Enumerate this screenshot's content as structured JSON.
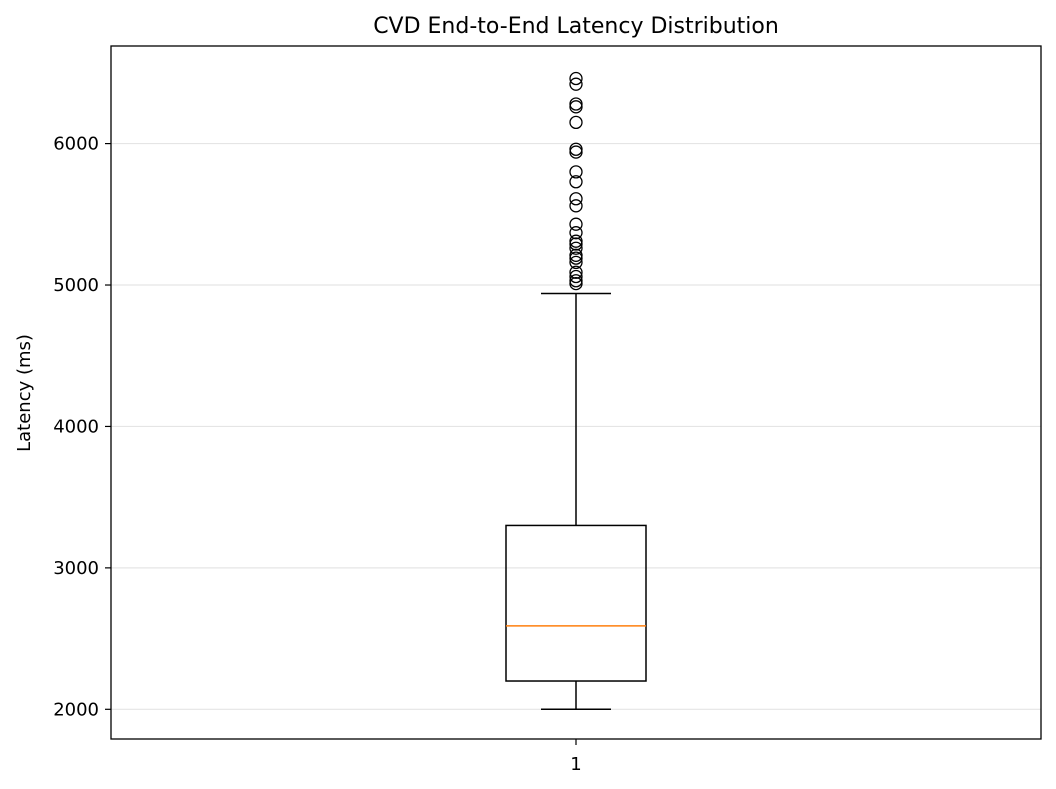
{
  "chart_data": {
    "type": "box",
    "title": "CVD End-to-End Latency Distribution",
    "xlabel": "",
    "ylabel": "Latency (ms)",
    "ylim": [
      1790,
      6690
    ],
    "yticks": [
      2000,
      3000,
      4000,
      5000,
      6000
    ],
    "grid": {
      "y": true,
      "x": false
    },
    "categories": [
      "1"
    ],
    "boxes": [
      {
        "category": "1",
        "whisker_low": 2000,
        "q1": 2200,
        "median": 2590,
        "q3": 3300,
        "whisker_high": 4940,
        "outliers": [
          5010,
          5030,
          5060,
          5090,
          5160,
          5190,
          5210,
          5260,
          5290,
          5310,
          5370,
          5430,
          5560,
          5610,
          5730,
          5800,
          5940,
          5960,
          6150,
          6260,
          6280,
          6420,
          6460
        ]
      }
    ],
    "colors": {
      "median": "#ff7f0e",
      "box": "#000000",
      "grid": "#e5e5e5"
    }
  }
}
